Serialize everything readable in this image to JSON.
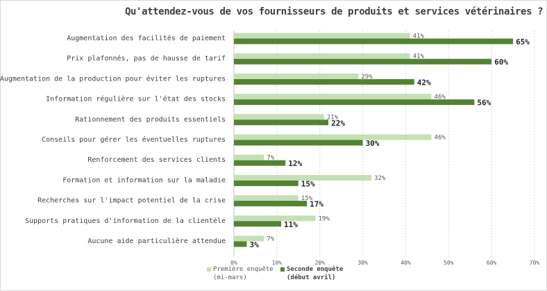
{
  "chart_data": {
    "type": "bar",
    "orientation": "horizontal",
    "title": "Qu'attendez-vous de vos fournisseurs de produits et services vétérinaires ?",
    "categories": [
      "Augmentation des facilités de paiement",
      "Prix plafonnés, pas de hausse de tarif",
      "Augmentation de la production pour éviter les ruptures",
      "Information régulière sur l'état des stocks",
      "Rationnement des produits essentiels",
      "Conseils pour gérer les éventuelles ruptures",
      "Renforcement des services clients",
      "Formation et information sur la maladie",
      "Recherches sur l'impact potentiel de la crise",
      "Supports pratiques d'information de la clientèle",
      "Aucune aide particulière attendue"
    ],
    "series": [
      {
        "name": "Première enquête (mi-mars)",
        "name_line1": "Première enquête",
        "name_line2": "(mi-mars)",
        "color": "#c5e0b4",
        "values": [
          41,
          41,
          29,
          46,
          21,
          46,
          7,
          32,
          15,
          19,
          7
        ]
      },
      {
        "name": "Seconde enquête (début avril)",
        "name_line1": "Seconde enquête",
        "name_line2": "(début avril)",
        "color": "#548235",
        "values": [
          65,
          60,
          42,
          56,
          22,
          30,
          12,
          15,
          17,
          11,
          3
        ]
      }
    ],
    "xlim": [
      0,
      70
    ],
    "xticks": [
      "0%",
      "10%",
      "20%",
      "30%",
      "40%",
      "50%",
      "60%",
      "70%"
    ],
    "value_suffix": "%",
    "grid": true,
    "legend_position": "bottom"
  }
}
